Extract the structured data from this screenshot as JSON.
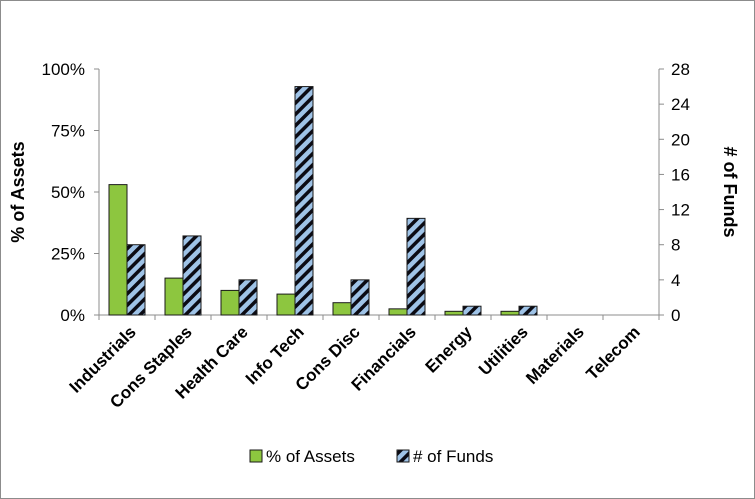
{
  "chart_data": {
    "type": "bar",
    "title": "",
    "categories": [
      "Industrials",
      "Cons Staples",
      "Health Care",
      "Info Tech",
      "Cons Disc",
      "Financials",
      "Energy",
      "Utilities",
      "Materials",
      "Telecom"
    ],
    "series": [
      {
        "name": "% of Assets",
        "axis": "left",
        "color": "#8dc63f",
        "values": [
          53,
          15,
          10,
          8.5,
          5,
          2.5,
          1.5,
          1.5,
          0,
          0
        ]
      },
      {
        "name": "# of Funds",
        "axis": "right",
        "color": "#9fc3e7",
        "pattern": "diagonal-hatch",
        "values": [
          8,
          9,
          4,
          26,
          4,
          11,
          1,
          1,
          0,
          0
        ]
      }
    ],
    "ylabel": "% of Assets",
    "y2label": "# of Funds",
    "ylim": [
      0,
      100
    ],
    "y2lim": [
      0,
      28
    ],
    "yticks": [
      "0%",
      "25%",
      "50%",
      "75%",
      "100%"
    ],
    "y2ticks": [
      "0",
      "4",
      "8",
      "12",
      "16",
      "20",
      "24",
      "28"
    ],
    "legend": "bottom",
    "grid": false
  }
}
